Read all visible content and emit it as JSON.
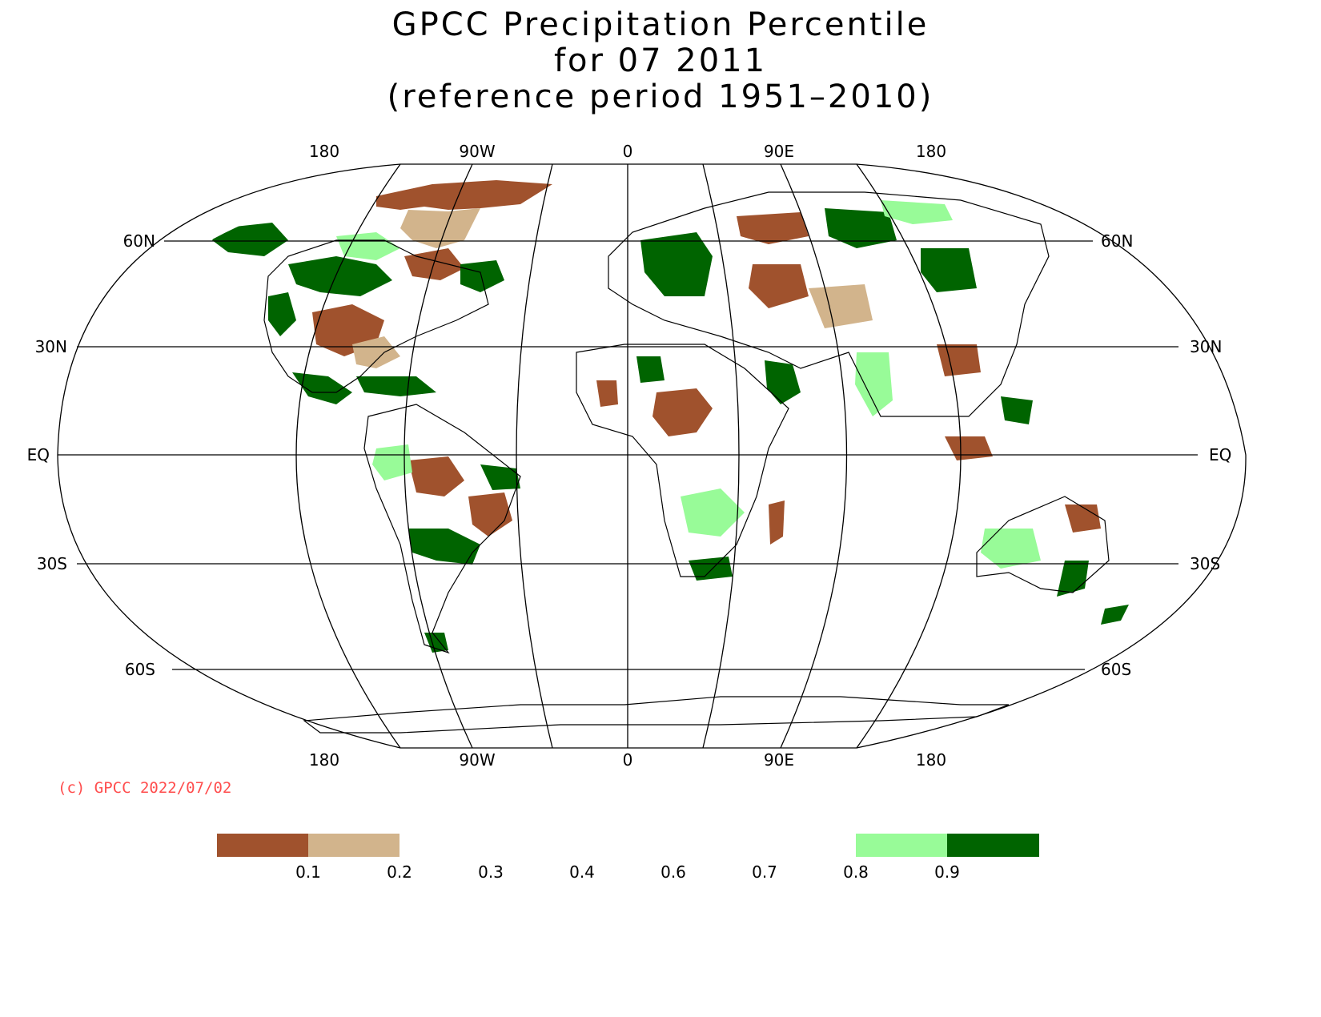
{
  "title": {
    "line1": "GPCC Precipitation Percentile",
    "line2": "for 07 2011",
    "line3": "(reference period 1951–2010)"
  },
  "lon_labels": [
    "180",
    "90W",
    "0",
    "90E",
    "180"
  ],
  "lat_labels": {
    "left": [
      "60N",
      "30N",
      "EQ",
      "30S",
      "60S"
    ],
    "right": [
      "60N",
      "30N",
      "EQ",
      "30S",
      "60S"
    ]
  },
  "copyright": "(c) GPCC 2022/07/02",
  "legend": {
    "colors": [
      "#a0522d",
      "#d2b48c",
      "#98fb98",
      "#006400"
    ],
    "tick_labels": [
      "0.1",
      "0.2",
      "0.3",
      "0.4",
      "0.6",
      "0.7",
      "0.8",
      "0.9"
    ]
  },
  "map": {
    "projection": "Robinson",
    "central_longitude_label": "0",
    "graticule_latitudes": [
      "60N",
      "30N",
      "EQ",
      "30S",
      "60S"
    ],
    "graticule_longitudes": [
      "180",
      "90W",
      "0",
      "90E",
      "180"
    ]
  }
}
